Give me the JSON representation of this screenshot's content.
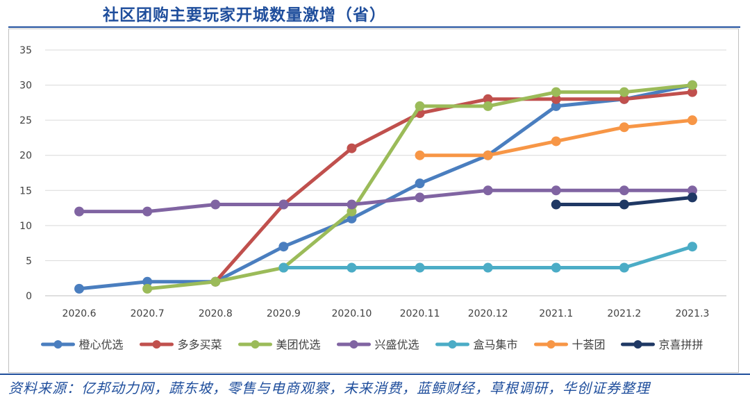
{
  "header": {
    "title": "社区团购主要玩家开城数量激增（省）"
  },
  "footer": {
    "source": "资料来源：亿邦动力网，蔬东坡，零售与电商观察，未来消费，蓝鲸财经，草根调研，华创证券整理"
  },
  "chart_data": {
    "type": "line",
    "title": "社区团购主要玩家开城数量激增（省）",
    "xlabel": "",
    "ylabel": "",
    "ylim": [
      0,
      35
    ],
    "yticks": [
      0,
      5,
      10,
      15,
      20,
      25,
      30,
      35
    ],
    "grid": true,
    "legend_position": "bottom",
    "categories": [
      "2020.6",
      "2020.7",
      "2020.8",
      "2020.9",
      "2020.10",
      "2020.11",
      "2020.12",
      "2021.1",
      "2021.2",
      "2021.3"
    ],
    "series": [
      {
        "name": "橙心优选",
        "color": "#4a7ebf",
        "values": [
          1,
          2,
          2,
          7,
          11,
          16,
          20,
          27,
          28,
          30
        ]
      },
      {
        "name": "多多买菜",
        "color": "#c0504d",
        "values": [
          null,
          null,
          2,
          13,
          21,
          26,
          28,
          28,
          28,
          29
        ]
      },
      {
        "name": "美团优选",
        "color": "#9bbb59",
        "values": [
          null,
          1,
          2,
          4,
          12,
          27,
          27,
          29,
          29,
          30
        ]
      },
      {
        "name": "兴盛优选",
        "color": "#8064a2",
        "values": [
          12,
          12,
          13,
          13,
          13,
          14,
          15,
          15,
          15,
          15
        ]
      },
      {
        "name": "盒马集市",
        "color": "#4bacc6",
        "values": [
          null,
          null,
          null,
          4,
          4,
          4,
          4,
          4,
          4,
          7
        ]
      },
      {
        "name": "十荟团",
        "color": "#f79646",
        "values": [
          null,
          null,
          null,
          null,
          null,
          20,
          20,
          22,
          24,
          25
        ]
      },
      {
        "name": "京喜拼拼",
        "color": "#1f3864",
        "values": [
          null,
          null,
          null,
          null,
          null,
          null,
          null,
          13,
          13,
          14
        ]
      }
    ]
  }
}
